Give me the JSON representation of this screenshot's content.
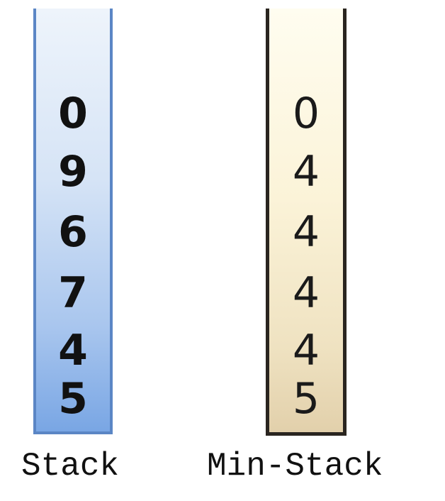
{
  "stack": {
    "label": "Stack",
    "values": [
      "0",
      "9",
      "6",
      "7",
      "4",
      "5"
    ],
    "color": "#5b86c5"
  },
  "min_stack": {
    "label": "Min-Stack",
    "values": [
      "0",
      "4",
      "4",
      "4",
      "4",
      "5"
    ],
    "color": "#2a2520"
  }
}
